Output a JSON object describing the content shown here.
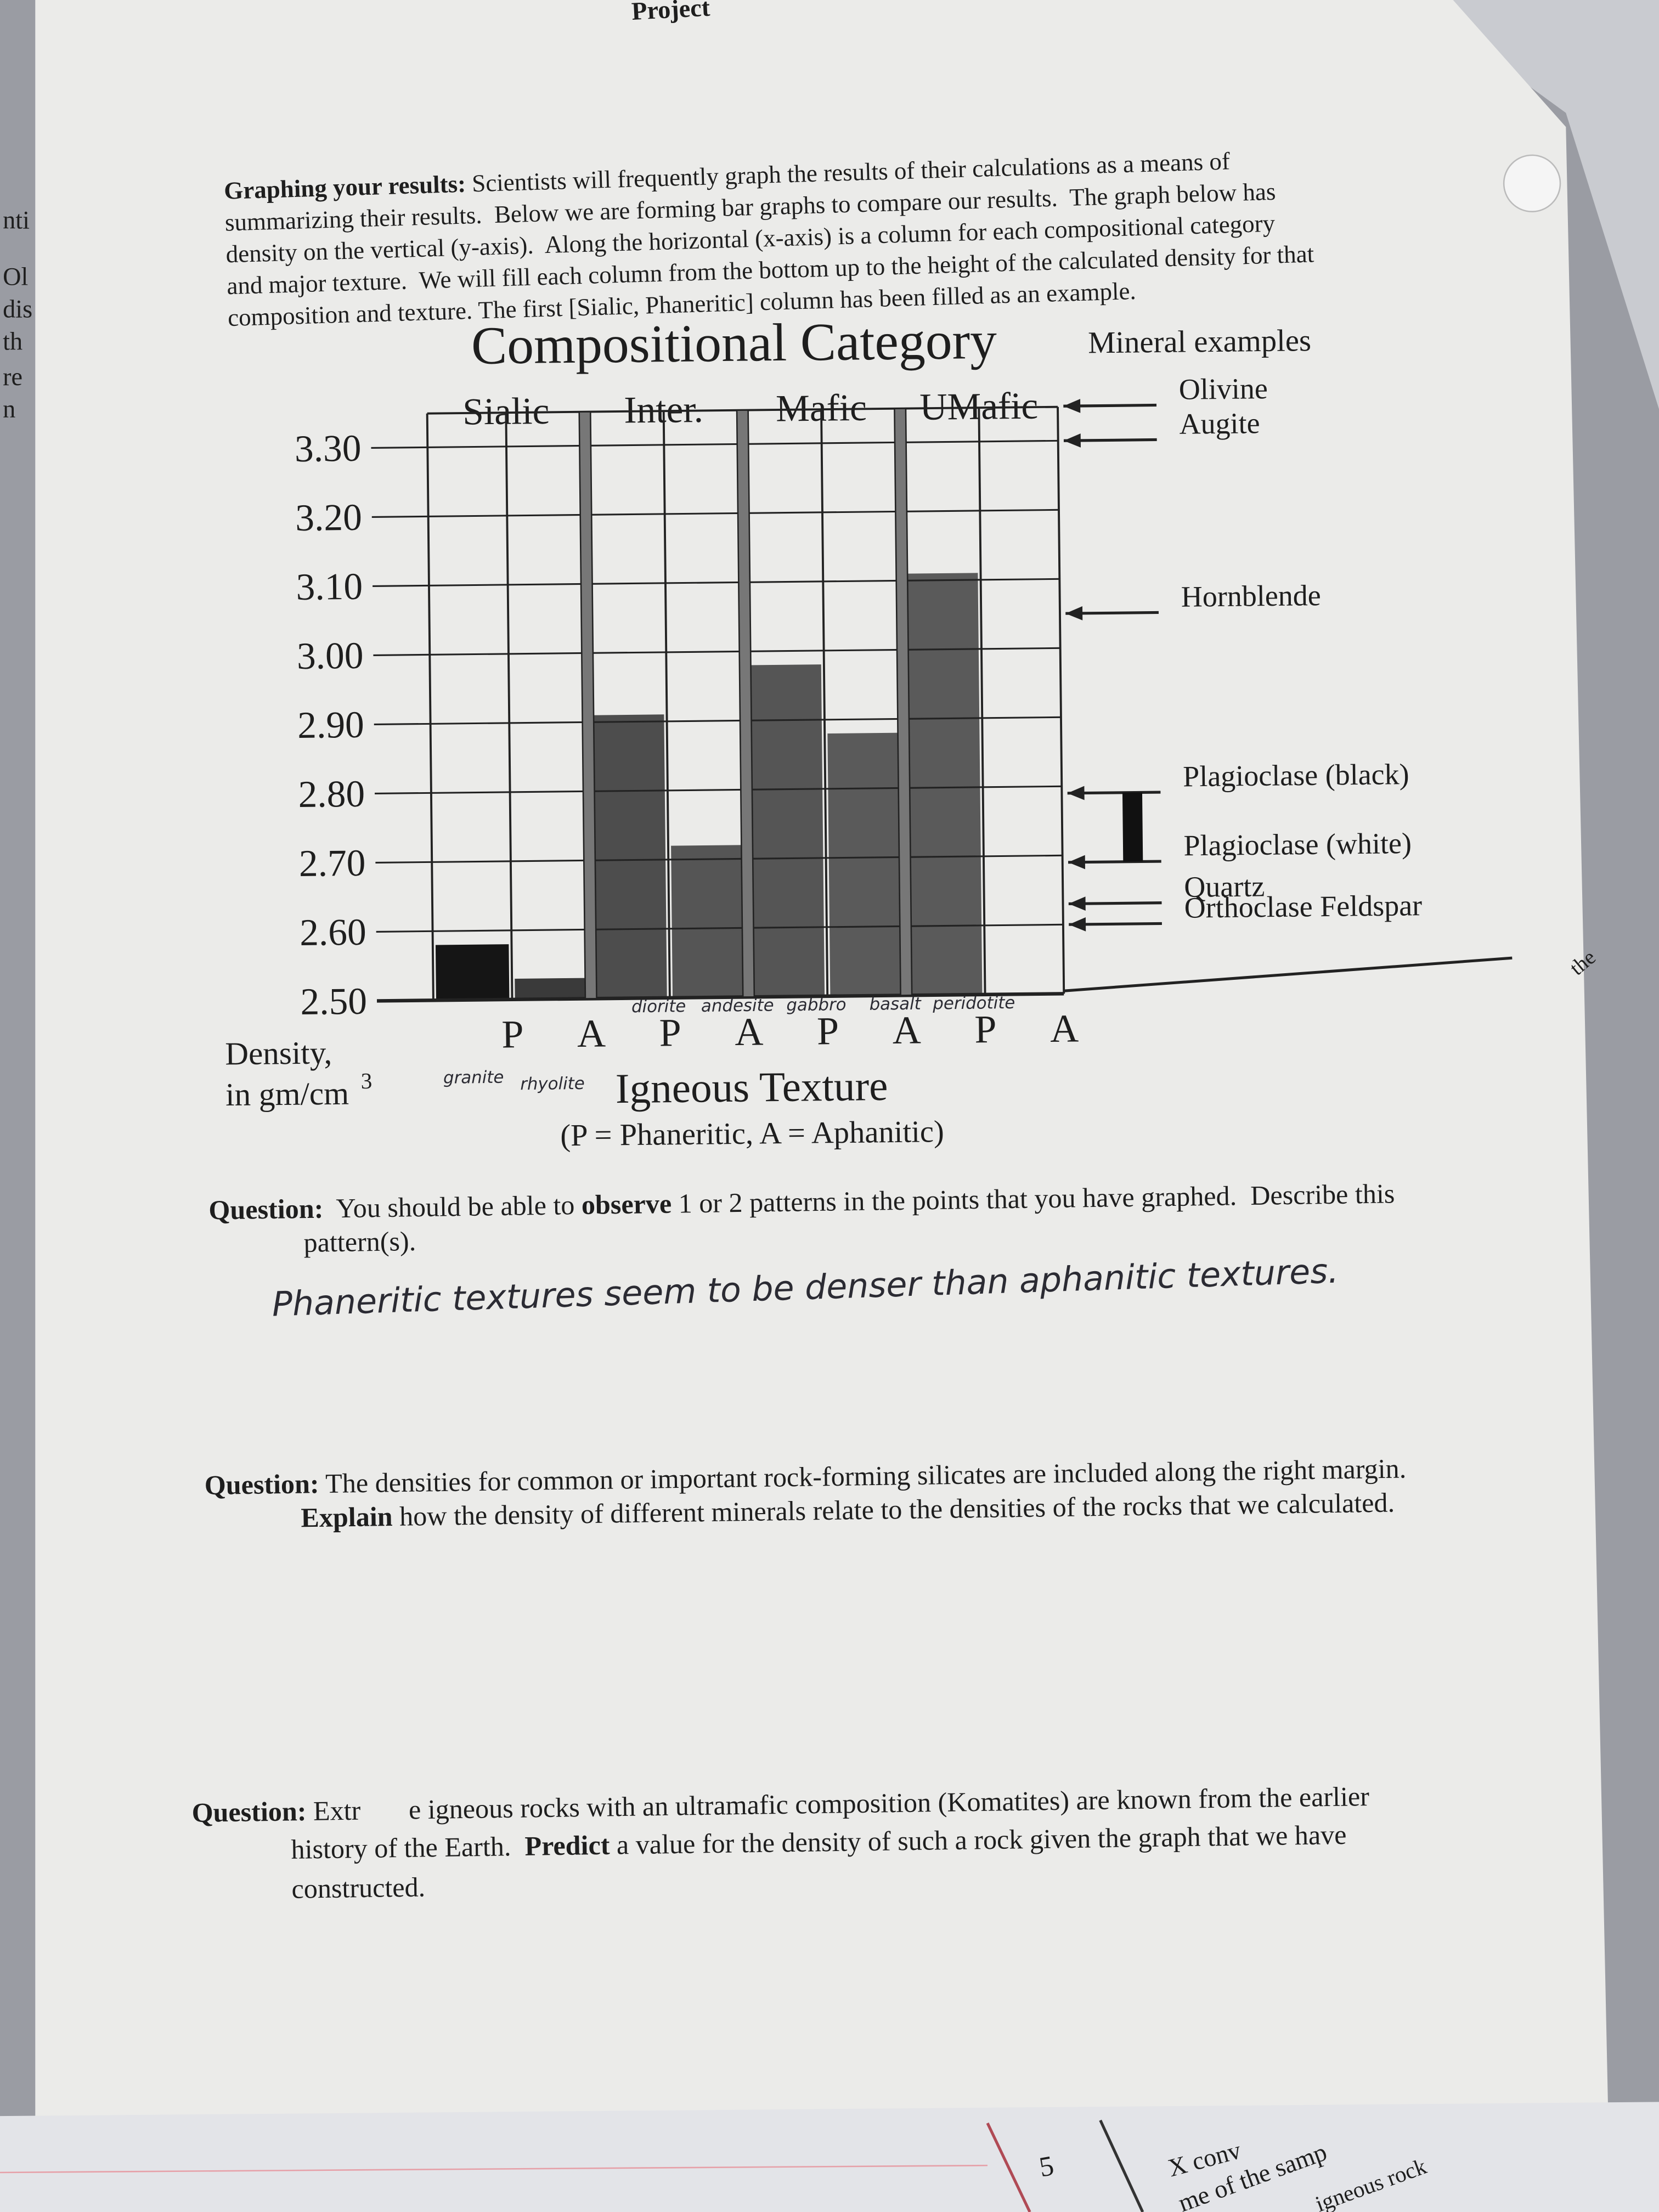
{
  "header": {
    "title": "Project"
  },
  "margin_fragments": [
    "nti",
    "Ol",
    "dis",
    "th",
    "re",
    "n"
  ],
  "intro": [
    [
      {
        "text": "Graphing your results:",
        "bold": true
      },
      {
        "text": " Scientists will frequently graph the results of their calculations as a means of"
      }
    ],
    [
      {
        "text": "summarizing their results.  Below we are forming bar graphs to compare our results.  The graph below has"
      }
    ],
    [
      {
        "text": "density on the vertical (y-axis).  Along the horizontal (x-axis) is a column for each compositional category"
      }
    ],
    [
      {
        "text": "and major texture.  We will fill each column from the bottom up to the height of the calculated density for that"
      }
    ],
    [
      {
        "text": "composition and texture. The first [Sialic, Phaneritic] column has been filled as an example."
      }
    ]
  ],
  "chart_data": {
    "type": "bar",
    "title": "Compositional Category",
    "groups": [
      "Sialic",
      "Inter.",
      "Mafic",
      "UMafic"
    ],
    "categories": [
      "P",
      "A",
      "P",
      "A",
      "P",
      "A",
      "P",
      "A"
    ],
    "rock_names": [
      "granite",
      "rhyolite",
      "diorite",
      "andesite",
      "gabbro",
      "basalt",
      "peridotite",
      null
    ],
    "values": [
      2.58,
      2.53,
      2.91,
      2.72,
      2.98,
      2.88,
      3.11,
      null
    ],
    "colors": [
      "#151515",
      "#3a3a3a",
      "#4d4d4d",
      "#555555",
      "#555555",
      "#5a5a5a",
      "#5a5a5a",
      "#5a5a5a"
    ],
    "ylim": [
      2.5,
      3.3
    ],
    "yticks": [
      {
        "value": 2.5,
        "label": "2.50"
      },
      {
        "value": 2.6,
        "label": "2.60"
      },
      {
        "value": 2.7,
        "label": "2.70"
      },
      {
        "value": 2.8,
        "label": "2.80"
      },
      {
        "value": 2.9,
        "label": "2.90"
      },
      {
        "value": 3.0,
        "label": "3.00"
      },
      {
        "value": 3.1,
        "label": "3.10"
      },
      {
        "value": 3.2,
        "label": "3.20"
      },
      {
        "value": 3.3,
        "label": "3.30"
      }
    ],
    "grid": true,
    "y_label": [
      "Density,",
      "in gm/cm"
    ],
    "y_label_superscript": "3",
    "x_label": "Igneous Texture",
    "x_note": "(P = Phaneritic, A = Aphanitic)",
    "minerals_title": "Mineral examples",
    "minerals": [
      {
        "label": "Olivine",
        "value": 3.35
      },
      {
        "label": "Augite",
        "value": 3.3
      },
      {
        "label": "Hornblende",
        "value": 3.05
      },
      {
        "label": "Plagioclase (black)",
        "value": 2.79
      },
      {
        "label": "Plagioclase (white)",
        "value": 2.69
      },
      {
        "label": "Quartz",
        "value": 2.63
      },
      {
        "label": "Orthoclase Feldspar",
        "value": 2.6
      }
    ]
  },
  "questions": [
    {
      "lines": [
        [
          {
            "text": "Question:",
            "bold": true
          },
          {
            "text": "  You should be able to "
          },
          {
            "text": "observe",
            "bold": true
          },
          {
            "text": " 1 or 2 patterns in the points that you have graphed.  Describe this"
          }
        ],
        [
          {
            "text": "pattern(s)."
          }
        ]
      ],
      "answer": "Phaneritic textures seem to be denser than aphanitic textures."
    },
    {
      "lines": [
        [
          {
            "text": "Question:",
            "bold": true
          },
          {
            "text": " The densities for common or important rock-forming silicates are included along the right margin."
          }
        ],
        [
          {
            "text": "Explain",
            "bold": true
          },
          {
            "text": " how the density of different minerals relate to the densities of the rocks that we calculated."
          }
        ]
      ]
    },
    {
      "lines": [
        [
          {
            "text": "Question:",
            "bold": true
          },
          {
            "text": " Extr"
          },
          {
            "text": "       e igneous rocks with an ultramafic composition (Komatites) are known from the earlier"
          }
        ],
        [
          {
            "text": "history of the Earth.  "
          },
          {
            "text": "Predict",
            "bold": true
          },
          {
            "text": " a value for the density of such a rock given the graph that we have"
          }
        ],
        [
          {
            "text": "constructed."
          }
        ]
      ]
    }
  ],
  "fragments": [
    "the",
    "5",
    "X conv",
    "me of the samp",
    "igneous rock"
  ]
}
